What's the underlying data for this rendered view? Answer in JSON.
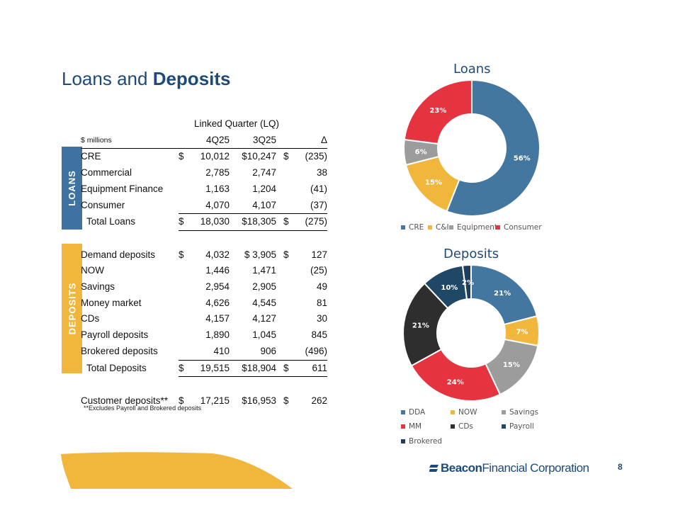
{
  "slide": {
    "title_plain": "Loans and",
    "title_bold": "Deposits",
    "page_number": "8",
    "footnote": "**Excludes Payroll and Brokered deposits",
    "logo_bold": "Beacon",
    "logo_rest": "Financial Corporation"
  },
  "table": {
    "group_header": "Linked Quarter (LQ)",
    "units_label": "$ millions",
    "col_headers": [
      "4Q25",
      "3Q25",
      "Δ"
    ],
    "loans_side_label": "LOANS",
    "deposits_side_label": "DEPOSITS",
    "loan_rows": [
      {
        "label": "CRE",
        "d1": "$",
        "v1": "10,012",
        "v2": "$10,247",
        "d3": "$",
        "v3": "(235)"
      },
      {
        "label": "Commercial",
        "d1": "",
        "v1": "2,785",
        "v2": "2,747",
        "d3": "",
        "v3": "38"
      },
      {
        "label": "Equipment Finance",
        "d1": "",
        "v1": "1,163",
        "v2": "1,204",
        "d3": "",
        "v3": "(41)"
      },
      {
        "label": "Consumer",
        "d1": "",
        "v1": "4,070",
        "v2": "4,107",
        "d3": "",
        "v3": "(37)"
      }
    ],
    "loan_total": {
      "label": "Total Loans",
      "d1": "$",
      "v1": "18,030",
      "v2": "$18,305",
      "d3": "$",
      "v3": "(275)"
    },
    "deposit_rows": [
      {
        "label": "Demand deposits",
        "d1": "$",
        "v1": "4,032",
        "v2": "$ 3,905",
        "d3": "$",
        "v3": "127"
      },
      {
        "label": "NOW",
        "d1": "",
        "v1": "1,446",
        "v2": "1,471",
        "d3": "",
        "v3": "(25)"
      },
      {
        "label": "Savings",
        "d1": "",
        "v1": "2,954",
        "v2": "2,905",
        "d3": "",
        "v3": "49"
      },
      {
        "label": "Money market",
        "d1": "",
        "v1": "4,626",
        "v2": "4,545",
        "d3": "",
        "v3": "81"
      },
      {
        "label": "CDs",
        "d1": "",
        "v1": "4,157",
        "v2": "4,127",
        "d3": "",
        "v3": "30"
      },
      {
        "label": "Payroll deposits",
        "d1": "",
        "v1": "1,890",
        "v2": "1,045",
        "d3": "",
        "v3": "845"
      },
      {
        "label": "Brokered deposits",
        "d1": "",
        "v1": "410",
        "v2": "906",
        "d3": "",
        "v3": "(496)"
      }
    ],
    "deposit_total": {
      "label": "Total Deposits",
      "d1": "$",
      "v1": "19,515",
      "v2": "$18,904",
      "d3": "$",
      "v3": "611"
    },
    "customer_row": {
      "label": "Customer deposits**",
      "d1": "$",
      "v1": "17,215",
      "v2": "$16,953",
      "d3": "$",
      "v3": "262"
    }
  },
  "colors": {
    "loans_badge": "#3f72a0",
    "deposits_badge": "#f0b73c",
    "wave": "#f0b73c"
  },
  "chart_data": [
    {
      "type": "pie",
      "title": "Loans",
      "categories": [
        "CRE",
        "C&I",
        "Equipment",
        "Consumer"
      ],
      "values": [
        56,
        15,
        6,
        23
      ],
      "labels": [
        "56%",
        "15%",
        "6%",
        "23%"
      ],
      "colors": [
        "#44779f",
        "#f0b73c",
        "#9c9c9c",
        "#e5343f"
      ],
      "legend_position": "bottom"
    },
    {
      "type": "pie",
      "title": "Deposits",
      "categories": [
        "DDA",
        "NOW",
        "Savings",
        "MM",
        "CDs",
        "Payroll",
        "Brokered"
      ],
      "values": [
        21,
        7,
        15,
        24,
        21,
        10,
        2
      ],
      "labels": [
        "21%",
        "7%",
        "15%",
        "24%",
        "21%",
        "10%",
        "2%"
      ],
      "colors": [
        "#44779f",
        "#f0b73c",
        "#9c9c9c",
        "#e5343f",
        "#2e2e2e",
        "#1f4766",
        "#1f3d5c"
      ],
      "legend_position": "bottom"
    }
  ]
}
